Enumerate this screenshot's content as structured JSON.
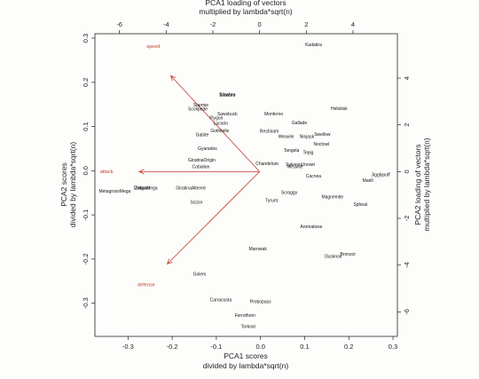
{
  "chart_data": {
    "type": "scatter",
    "title": "",
    "x_axis_bottom": {
      "label_line1": "PCA1 scores",
      "label_line2": "divided by lambda*sqrt(n)",
      "ticks": [
        -0.3,
        -0.2,
        -0.1,
        0.0,
        0.1,
        0.2,
        0.3
      ],
      "tick_labels": [
        "-0.3",
        "-0.2",
        "-0.1",
        "0.0",
        "0.1",
        "0.2",
        "0.3"
      ],
      "range": [
        -0.375,
        0.31
      ]
    },
    "y_axis_left": {
      "label_line1": "PCA2 scores",
      "label_line2": "divided by lambda*sqrt(n)",
      "ticks": [
        -0.3,
        -0.2,
        -0.1,
        0.0,
        0.1,
        0.2,
        0.3
      ],
      "tick_labels": [
        "-0.3",
        "-0.2",
        "-0.1",
        "0.0",
        "0.1",
        "0.2",
        "0.3"
      ],
      "range": [
        -0.375,
        0.31
      ]
    },
    "x_axis_top": {
      "label_line1": "PCA1 loading of vectors",
      "label_line2": "multiplied by lambda*sqrt(n)",
      "ticks": [
        -6,
        -4,
        -2,
        0,
        2,
        4
      ],
      "tick_labels": [
        "-6",
        "-4",
        "-2",
        "0",
        "2",
        "4"
      ],
      "range": [
        -7.05,
        5.9
      ]
    },
    "y_axis_right": {
      "label_line1": "PCA2 loading of vectors",
      "label_line2": "multiplied by lambda*sqrt(n)",
      "ticks": [
        -6,
        -4,
        -2,
        0,
        2,
        4
      ],
      "tick_labels": [
        "-6",
        "-4",
        "-2",
        "0",
        "2",
        "4"
      ],
      "range": [
        -7.05,
        5.9
      ]
    },
    "points": [
      {
        "label": "Kadabra",
        "x": 0.12,
        "y": 0.285
      },
      {
        "label": "Slowbro",
        "x": -0.075,
        "y": 0.172
      },
      {
        "label": "Slowbro",
        "x": -0.075,
        "y": 0.17
      },
      {
        "label": "Starmie",
        "x": -0.135,
        "y": 0.148
      },
      {
        "label": "Sawsbuck",
        "x": -0.075,
        "y": 0.128
      },
      {
        "label": "Scolipede",
        "x": -0.142,
        "y": 0.139
      },
      {
        "label": "Flygon",
        "x": -0.1,
        "y": 0.119
      },
      {
        "label": "Lucario",
        "x": -0.09,
        "y": 0.107
      },
      {
        "label": "Monferno",
        "x": 0.03,
        "y": 0.128
      },
      {
        "label": "Heliolisk",
        "x": 0.178,
        "y": 0.14
      },
      {
        "label": "Gallade",
        "x": 0.088,
        "y": 0.108
      },
      {
        "label": "Gothitelle",
        "x": -0.092,
        "y": 0.09
      },
      {
        "label": "Reshiram",
        "x": 0.02,
        "y": 0.089
      },
      {
        "label": "Gabite",
        "x": -0.132,
        "y": 0.081
      },
      {
        "label": "Weavile",
        "x": 0.058,
        "y": 0.077
      },
      {
        "label": "Ninjask",
        "x": 0.105,
        "y": 0.077
      },
      {
        "label": "Swellow",
        "x": 0.14,
        "y": 0.082
      },
      {
        "label": "Noctowl",
        "x": 0.138,
        "y": 0.06
      },
      {
        "label": "Gyarados",
        "x": -0.12,
        "y": 0.05
      },
      {
        "label": "Tangela",
        "x": 0.07,
        "y": 0.045
      },
      {
        "label": "Tepig",
        "x": 0.108,
        "y": 0.04
      },
      {
        "label": "GiratinaOrigin",
        "x": -0.133,
        "y": 0.023
      },
      {
        "label": "Cobalion",
        "x": -0.135,
        "y": 0.008
      },
      {
        "label": "Chandelure",
        "x": 0.015,
        "y": 0.015
      },
      {
        "label": "Sylveon",
        "x": 0.075,
        "y": 0.013
      },
      {
        "label": "Unown",
        "x": 0.108,
        "y": 0.013
      },
      {
        "label": "Weavile",
        "x": 0.078,
        "y": 0.008
      },
      {
        "label": "Cacnea",
        "x": 0.12,
        "y": -0.013
      },
      {
        "label": "Jigglypuff",
        "x": 0.272,
        "y": -0.01
      },
      {
        "label": "Marill",
        "x": 0.243,
        "y": -0.023
      },
      {
        "label": "MetagrossMega",
        "x": -0.33,
        "y": -0.047
      },
      {
        "label": "Zekrom",
        "x": -0.268,
        "y": -0.04
      },
      {
        "label": "DialgaMega",
        "x": -0.26,
        "y": -0.04
      },
      {
        "label": "GiratinaAltered",
        "x": -0.158,
        "y": -0.04
      },
      {
        "label": "Scraggy",
        "x": 0.065,
        "y": -0.05
      },
      {
        "label": "Tyrunt",
        "x": 0.025,
        "y": -0.068
      },
      {
        "label": "Magnemite",
        "x": 0.163,
        "y": -0.06
      },
      {
        "label": "Scizor",
        "x": -0.145,
        "y": -0.072
      },
      {
        "label": "Spheal",
        "x": 0.226,
        "y": -0.077
      },
      {
        "label": "Aromatisse",
        "x": 0.115,
        "y": -0.127
      },
      {
        "label": "Marowak",
        "x": -0.006,
        "y": -0.177
      },
      {
        "label": "Dusknoir",
        "x": 0.165,
        "y": -0.195
      },
      {
        "label": "Bronzor",
        "x": 0.198,
        "y": -0.19
      },
      {
        "label": "Golem",
        "x": -0.138,
        "y": -0.235
      },
      {
        "label": "Carracosta",
        "x": -0.09,
        "y": -0.293
      },
      {
        "label": "Probopass",
        "x": 0.0,
        "y": -0.297
      },
      {
        "label": "Ferrothorn",
        "x": -0.035,
        "y": -0.328
      },
      {
        "label": "Torkoal",
        "x": -0.028,
        "y": -0.353
      }
    ],
    "loading_vectors": [
      {
        "name": "speed",
        "x": -3.8,
        "y": 4.1,
        "label_x": -4.55,
        "label_y": 5.35
      },
      {
        "name": "attack",
        "x": -5.15,
        "y": 0.0,
        "label_x": -6.55,
        "label_y": 0.0
      },
      {
        "name": "defense",
        "x": -3.95,
        "y": -3.95,
        "label_x": -4.85,
        "label_y": -4.85
      }
    ],
    "colors": {
      "points": "#111111",
      "vectors": "#c0392b",
      "axes": "#222222",
      "background": "#fdfdfb"
    }
  }
}
